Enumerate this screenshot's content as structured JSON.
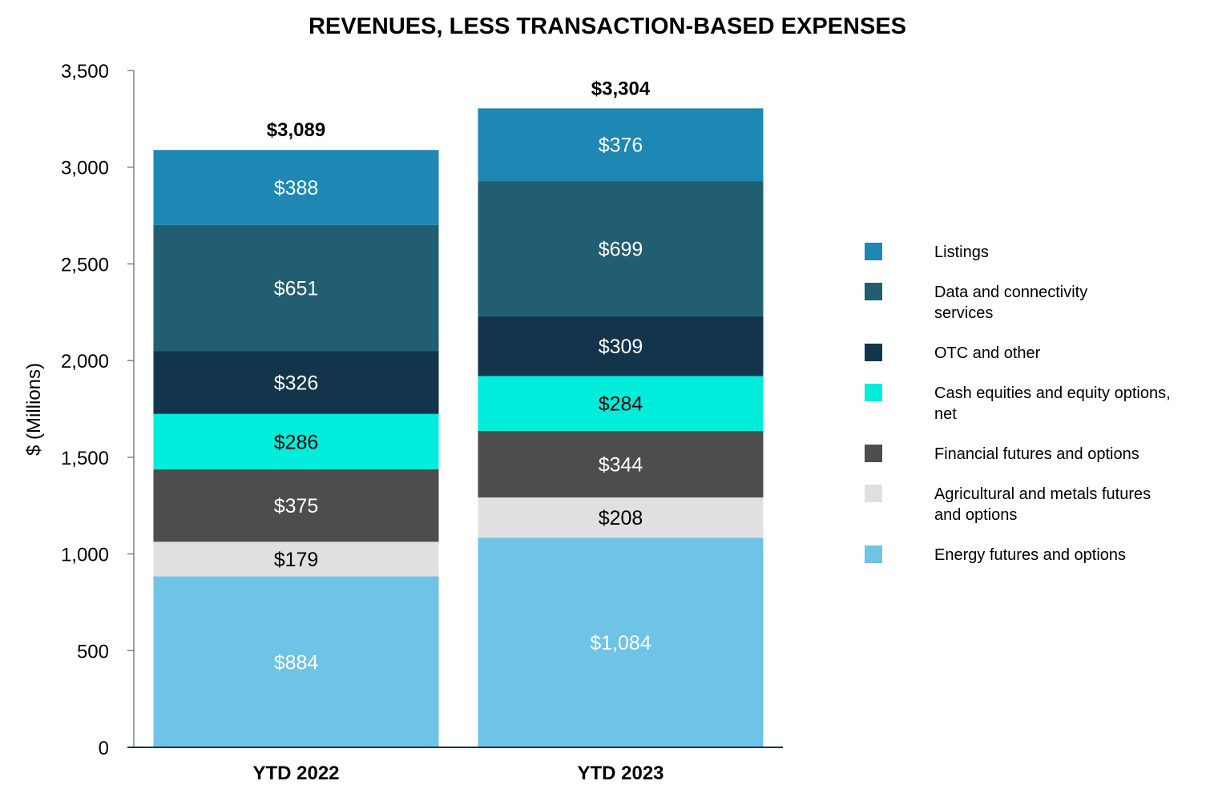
{
  "chart_data": {
    "type": "bar",
    "stacked": true,
    "title": "REVENUES, LESS TRANSACTION-BASED EXPENSES",
    "ylabel": "$ (Millions)",
    "xlabel": "",
    "ylim": [
      0,
      3500
    ],
    "yticks": [
      0,
      500,
      1000,
      1500,
      2000,
      2500,
      3000,
      3500
    ],
    "ytick_labels": [
      "0",
      "500",
      "1,000",
      "1,500",
      "2,000",
      "2,500",
      "3,000",
      "3,500"
    ],
    "categories": [
      "YTD 2022",
      "YTD 2023"
    ],
    "totals": [
      3089,
      3304
    ],
    "total_labels": [
      "$3,089",
      "$3,304"
    ],
    "grid": false,
    "legend_position": "right",
    "series": [
      {
        "name": "Energy futures and options",
        "values": [
          884,
          1084
        ],
        "labels": [
          "$884",
          "$1,084"
        ],
        "color": "#6FC3E6",
        "label_color": "#ffffff"
      },
      {
        "name": "Agricultural and metals futures and options",
        "values": [
          179,
          208
        ],
        "labels": [
          "$179",
          "$208"
        ],
        "color": "#E0E0E0",
        "label_color": "#000000"
      },
      {
        "name": "Financial futures and options",
        "values": [
          375,
          344
        ],
        "labels": [
          "$375",
          "$344"
        ],
        "color": "#4D4D4D",
        "label_color": "#ffffff"
      },
      {
        "name": "Cash equities and equity options, net",
        "values": [
          286,
          284
        ],
        "labels": [
          "$286",
          "$284"
        ],
        "color": "#00EDDB",
        "label_color": "#000000"
      },
      {
        "name": "OTC and other",
        "values": [
          326,
          309
        ],
        "labels": [
          "$326",
          "$309"
        ],
        "color": "#12354C",
        "label_color": "#ffffff"
      },
      {
        "name": "Data and connectivity services",
        "values": [
          651,
          699
        ],
        "labels": [
          "$651",
          "$699"
        ],
        "color": "#225E72",
        "label_color": "#ffffff"
      },
      {
        "name": "Listings",
        "values": [
          388,
          376
        ],
        "labels": [
          "$388",
          "$376"
        ],
        "color": "#1E87B4",
        "label_color": "#ffffff"
      }
    ],
    "legend": [
      {
        "lines": [
          "Listings"
        ],
        "color": "#1E87B4"
      },
      {
        "lines": [
          "Data and connectivity",
          "services"
        ],
        "color": "#225E72"
      },
      {
        "lines": [
          "OTC and other"
        ],
        "color": "#12354C"
      },
      {
        "lines": [
          "Cash equities and equity options,",
          " net"
        ],
        "color": "#00EDDB"
      },
      {
        "lines": [
          "Financial futures and options"
        ],
        "color": "#4D4D4D"
      },
      {
        "lines": [
          "Agricultural and metals futures",
          "and options"
        ],
        "color": "#E0E0E0"
      },
      {
        "lines": [
          "Energy futures and options"
        ],
        "color": "#6FC3E6"
      }
    ]
  }
}
